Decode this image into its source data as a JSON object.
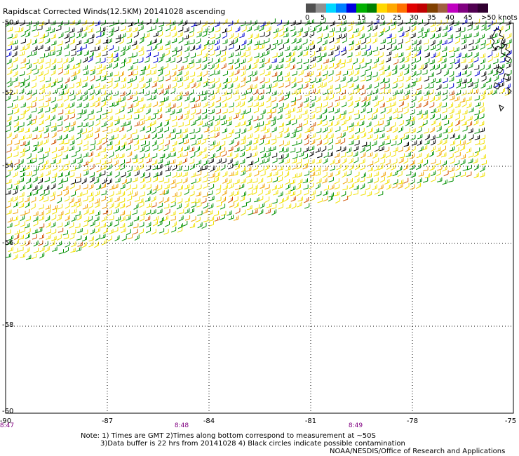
{
  "title": "Rapidscat Corrected Winds(12.5KM) 20141028 ascending",
  "legend": {
    "colors": [
      "#505050",
      "#909090",
      "#00d8ff",
      "#0080ff",
      "#0000e0",
      "#00b000",
      "#008000",
      "#ffd800",
      "#ffa800",
      "#ff7000",
      "#e00000",
      "#c00000",
      "#804000",
      "#a06040",
      "#c000c0",
      "#800080",
      "#500050",
      "#300030"
    ],
    "labels": [
      "0",
      "5",
      "10",
      "15",
      "20",
      "25",
      "30",
      "35",
      "40",
      "45",
      ">50 knots"
    ]
  },
  "axes": {
    "x_ticks": [
      "-90",
      "-87",
      "-84",
      "-81",
      "-78",
      "-75"
    ],
    "y_ticks": [
      "-50",
      "-52",
      "-54",
      "-56",
      "-58",
      "-60"
    ]
  },
  "times": [
    "8:47",
    "8:48",
    "8:49"
  ],
  "notes": {
    "line1": "Note: 1) Times are GMT 2)Times along bottom correspond to measurement at ~50S",
    "line2": "3)Data buffer is 22 hrs from 20141028 4) Black circles indicate possible contamination",
    "line3": "NOAA/NESDIS/Office of Research and Applications"
  },
  "swath": {
    "speed_colors": {
      "black": "#000000",
      "blue": "#0000d0",
      "green": "#009000",
      "darkgreen": "#006000",
      "yellow": "#f0e000",
      "orange": "#f0a000",
      "red": "#d05000"
    }
  }
}
